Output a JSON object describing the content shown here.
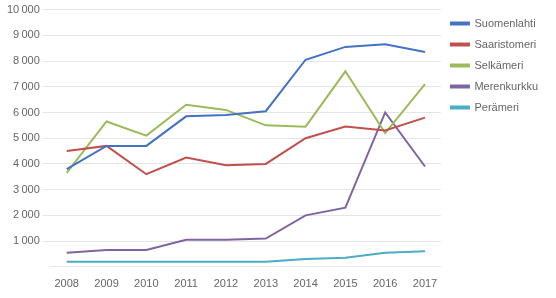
{
  "chart_data": {
    "type": "line",
    "x": [
      2008,
      2009,
      2010,
      2011,
      2012,
      2013,
      2014,
      2015,
      2016,
      2017
    ],
    "series": [
      {
        "name": "Suomenlahti",
        "color": "#4472C4",
        "values": [
          3800,
          4700,
          4700,
          5850,
          5900,
          6050,
          8050,
          8550,
          8650,
          8350
        ]
      },
      {
        "name": "Saaristomeri",
        "color": "#C0504D",
        "values": [
          4500,
          4700,
          3600,
          4250,
          3950,
          4000,
          5000,
          5450,
          5300,
          5800
        ]
      },
      {
        "name": "Selkämeri",
        "color": "#9BBB59",
        "values": [
          3650,
          5650,
          5100,
          6300,
          6100,
          5500,
          5450,
          7600,
          5200,
          7100
        ]
      },
      {
        "name": "Merenkurkku",
        "color": "#8064A2",
        "values": [
          550,
          650,
          650,
          1050,
          1050,
          1100,
          2000,
          2300,
          6000,
          3900
        ]
      },
      {
        "name": "Perämeri",
        "color": "#4BACC6",
        "values": [
          200,
          200,
          200,
          200,
          200,
          200,
          300,
          350,
          550,
          600
        ]
      }
    ],
    "xlim": [
      2007.6,
      2017.4
    ],
    "xticks": [
      2008,
      2009,
      2010,
      2011,
      2012,
      2013,
      2014,
      2015,
      2016,
      2017
    ],
    "ylim": [
      0,
      10000
    ],
    "yticks": [
      {
        "value": 1000,
        "label": "1 000"
      },
      {
        "value": 2000,
        "label": "2 000"
      },
      {
        "value": 3000,
        "label": "3 000"
      },
      {
        "value": 4000,
        "label": "4 000"
      },
      {
        "value": 5000,
        "label": "5 000"
      },
      {
        "value": 6000,
        "label": "6 000"
      },
      {
        "value": 7000,
        "label": "7 000"
      },
      {
        "value": 8000,
        "label": "8 000"
      },
      {
        "value": 9000,
        "label": "9 000"
      },
      {
        "value": 10000,
        "label": "10 000"
      }
    ],
    "grid": "y",
    "legend": "right",
    "marker": "none"
  }
}
